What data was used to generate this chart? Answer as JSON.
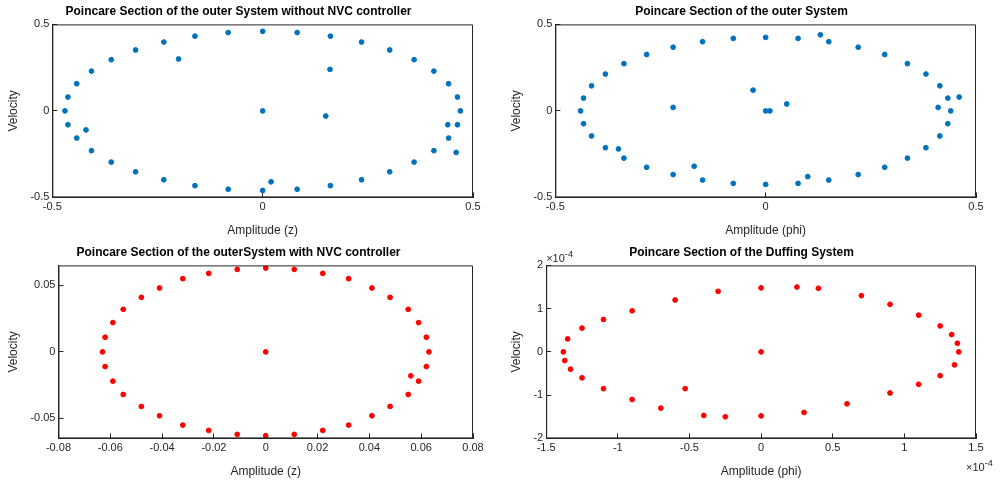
{
  "chart_data": [
    {
      "type": "scatter",
      "title": "Poincare Section of the outer System without NVC controller",
      "xlabel": "Amplitude (z)",
      "ylabel": "Velocity",
      "marker": "circle",
      "grid": false,
      "legend": false,
      "xlim": [
        -0.5,
        0.5
      ],
      "xticks": [
        -0.5,
        0,
        0.5
      ],
      "ylim": [
        -0.5,
        0.5
      ],
      "yticks": [
        -0.5,
        0,
        0.5
      ],
      "series": [
        {
          "color": "#0072bd",
          "x": [
            0.47,
            0.463,
            0.442,
            0.407,
            0.36,
            0.302,
            0.235,
            0.161,
            0.082,
            0,
            -0.082,
            -0.161,
            -0.235,
            -0.302,
            -0.36,
            -0.407,
            -0.442,
            -0.463,
            -0.47,
            -0.463,
            -0.442,
            -0.407,
            -0.36,
            -0.302,
            -0.235,
            -0.161,
            -0.082,
            0,
            0.082,
            0.161,
            0.235,
            0.302,
            0.36,
            0.407,
            0.442,
            0.463,
            0,
            -0.2,
            0.16,
            0.15,
            0.02,
            0.44,
            0.46,
            -0.42
          ],
          "values": [
            0,
            0.08,
            0.157,
            0.23,
            0.296,
            0.352,
            0.398,
            0.432,
            0.453,
            0.46,
            0.453,
            0.432,
            0.398,
            0.352,
            0.296,
            0.23,
            0.157,
            0.08,
            0,
            -0.08,
            -0.157,
            -0.23,
            -0.296,
            -0.352,
            -0.398,
            -0.432,
            -0.453,
            -0.46,
            -0.453,
            -0.432,
            -0.398,
            -0.352,
            -0.296,
            -0.23,
            -0.157,
            -0.08,
            0,
            0.3,
            0.24,
            -0.03,
            -0.41,
            -0.08,
            -0.24,
            -0.11
          ]
        }
      ]
    },
    {
      "type": "scatter",
      "title": "Poincare Section of the outer System",
      "xlabel": "Amplitude (phi)",
      "ylabel": "Velocity",
      "marker": "circle",
      "grid": false,
      "legend": false,
      "xlim": [
        -0.5,
        0.5
      ],
      "xticks": [
        -0.5,
        0,
        0.5
      ],
      "ylim": [
        -0.5,
        0.5
      ],
      "yticks": [
        -0.5,
        0,
        0.5
      ],
      "series": [
        {
          "color": "#0072bd",
          "x": [
            0.44,
            0.433,
            0.414,
            0.381,
            0.337,
            0.283,
            0.22,
            0.15,
            0.077,
            0,
            -0.077,
            -0.15,
            -0.22,
            -0.283,
            -0.337,
            -0.381,
            -0.414,
            -0.433,
            -0.44,
            -0.433,
            -0.414,
            -0.381,
            -0.337,
            -0.283,
            -0.22,
            -0.15,
            -0.077,
            0,
            0.077,
            0.15,
            0.22,
            0.283,
            0.337,
            0.381,
            0.414,
            0.433,
            -0.03,
            0,
            0.01,
            0.05,
            -0.22,
            -0.17,
            -0.35,
            0.1,
            0.46,
            0.41,
            0.13
          ],
          "values": [
            0,
            0.074,
            0.145,
            0.213,
            0.273,
            0.326,
            0.368,
            0.4,
            0.419,
            0.425,
            0.419,
            0.4,
            0.368,
            0.326,
            0.273,
            0.213,
            0.145,
            0.074,
            0,
            -0.074,
            -0.145,
            -0.213,
            -0.273,
            -0.326,
            -0.368,
            -0.4,
            -0.419,
            -0.425,
            -0.419,
            -0.4,
            -0.368,
            -0.326,
            -0.273,
            -0.213,
            -0.145,
            -0.074,
            0.12,
            0,
            0,
            0.04,
            0.02,
            -0.32,
            -0.22,
            -0.38,
            0.08,
            0.02,
            0.44
          ]
        }
      ]
    },
    {
      "type": "scatter",
      "title": "Poincare Section of the outerSystem with NVC controller",
      "xlabel": "Amplitude (z)",
      "ylabel": "Velocity",
      "marker": "circle",
      "grid": false,
      "legend": false,
      "xlim": [
        -0.08,
        0.08
      ],
      "xticks": [
        -0.08,
        -0.06,
        -0.04,
        -0.02,
        0,
        0.02,
        0.04,
        0.06,
        0.08
      ],
      "ylim": [
        -0.065,
        0.065
      ],
      "yticks": [
        -0.05,
        0,
        0.05
      ],
      "series": [
        {
          "color": "#ff0000",
          "x": [
            0.063,
            0.062,
            0.059,
            0.055,
            0.048,
            0.041,
            0.032,
            0.022,
            0.011,
            0,
            -0.011,
            -0.022,
            -0.032,
            -0.041,
            -0.048,
            -0.055,
            -0.059,
            -0.062,
            -0.063,
            -0.062,
            -0.059,
            -0.055,
            -0.048,
            -0.041,
            -0.032,
            -0.022,
            -0.011,
            0,
            0.011,
            0.022,
            0.032,
            0.041,
            0.048,
            0.055,
            0.059,
            0.062,
            0,
            0.056
          ],
          "values": [
            0,
            0.011,
            0.022,
            0.032,
            0.041,
            0.048,
            0.055,
            0.059,
            0.062,
            0.063,
            0.062,
            0.059,
            0.055,
            0.048,
            0.041,
            0.032,
            0.022,
            0.011,
            0,
            -0.011,
            -0.022,
            -0.032,
            -0.041,
            -0.048,
            -0.055,
            -0.059,
            -0.062,
            -0.063,
            -0.062,
            -0.059,
            -0.055,
            -0.048,
            -0.041,
            -0.032,
            -0.022,
            -0.011,
            0,
            -0.018
          ]
        }
      ]
    },
    {
      "type": "scatter",
      "title": "Poincare Section of the Duffing System",
      "xlabel": "Amplitude (phi)",
      "ylabel": "Velocity",
      "marker": "circle",
      "grid": false,
      "legend": false,
      "annotations": [
        "×10$^{-4}$",
        "×10$^{-4}$"
      ],
      "xlim": [
        -1.5,
        1.5
      ],
      "xticks": [
        -1.5,
        -1,
        -0.5,
        0,
        0.5,
        1,
        1.5
      ],
      "ylim": [
        -2,
        2
      ],
      "yticks": [
        -2,
        -1,
        0,
        1,
        2
      ],
      "series": [
        {
          "color": "#ff0000",
          "x": [
            1.38,
            1.37,
            1.33,
            1.25,
            1.1,
            0.9,
            0.7,
            0.4,
            0.25,
            0,
            -0.3,
            -0.6,
            -0.9,
            -1.1,
            -1.25,
            -1.35,
            -1.38,
            -1.37,
            -1.33,
            -1.25,
            -1.1,
            -0.9,
            -0.7,
            -0.4,
            -0.25,
            0,
            0.3,
            0.6,
            0.9,
            1.1,
            1.25,
            1.35,
            0,
            -0.53
          ],
          "values": [
            0,
            0.2,
            0.4,
            0.6,
            0.85,
            1.1,
            1.3,
            1.47,
            1.5,
            1.48,
            1.4,
            1.2,
            0.95,
            0.75,
            0.55,
            0.3,
            0,
            -0.2,
            -0.4,
            -0.6,
            -0.85,
            -1.1,
            -1.3,
            -1.47,
            -1.5,
            -1.48,
            -1.4,
            -1.2,
            -0.95,
            -0.75,
            -0.55,
            -0.3,
            0,
            -0.85
          ]
        }
      ]
    }
  ]
}
